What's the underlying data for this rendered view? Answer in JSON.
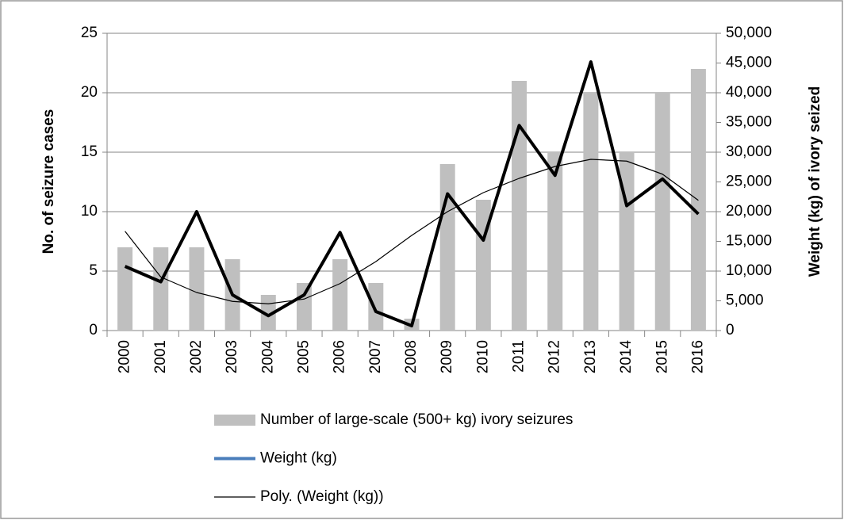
{
  "chart_data": {
    "type": "combo",
    "categories": [
      "2000",
      "2001",
      "2002",
      "2003",
      "2004",
      "2005",
      "2006",
      "2007",
      "2008",
      "2009",
      "2010",
      "2011",
      "2012",
      "2013",
      "2014",
      "2015",
      "2016"
    ],
    "y_label": "No. of seizure cases",
    "y2_label": "Weight (kg) of ivory seized",
    "ylim": [
      0,
      25
    ],
    "yticks": [
      0,
      5,
      10,
      15,
      20,
      25
    ],
    "y2lim": [
      0,
      50000
    ],
    "y2ticks": [
      0,
      {
        "value": 5000,
        "label": "5,000"
      },
      {
        "value": 10000,
        "label": "10,000"
      },
      {
        "value": 15000,
        "label": "15,000"
      },
      {
        "value": 20000,
        "label": "20,000"
      },
      {
        "value": 25000,
        "label": "25,000"
      },
      {
        "value": 30000,
        "label": "30,000"
      },
      {
        "value": 35000,
        "label": "35,000"
      },
      {
        "value": 40000,
        "label": "40,000"
      },
      {
        "value": 45000,
        "label": "45,000"
      },
      {
        "value": 50000,
        "label": "50,000"
      }
    ],
    "grid": true,
    "legend": "bottom",
    "series": [
      {
        "name": "Number of large-scale (500+ kg) ivory seizures",
        "kind": "bar",
        "color": "#bfbfbf",
        "values": [
          7,
          7,
          7,
          6,
          3,
          4,
          6,
          4,
          1,
          14,
          11,
          21,
          15,
          20,
          15,
          20,
          22
        ]
      },
      {
        "name": "Weight (kg)",
        "kind": "line",
        "axis": "y2",
        "color": "#000000",
        "legend_color": "#4a7ebb",
        "values": [
          10800,
          8200,
          20000,
          6000,
          2500,
          6000,
          16500,
          3200,
          800,
          23000,
          15200,
          34500,
          26100,
          45200,
          21000,
          25500,
          19600
        ]
      },
      {
        "name": "Poly. (Weight (kg))",
        "kind": "trend",
        "axis": "y2",
        "color": "#000000",
        "values": [
          16700,
          9000,
          6400,
          4900,
          4500,
          5300,
          7900,
          11600,
          16000,
          20000,
          23200,
          25600,
          27600,
          28800,
          28500,
          26300,
          21900
        ]
      }
    ]
  }
}
